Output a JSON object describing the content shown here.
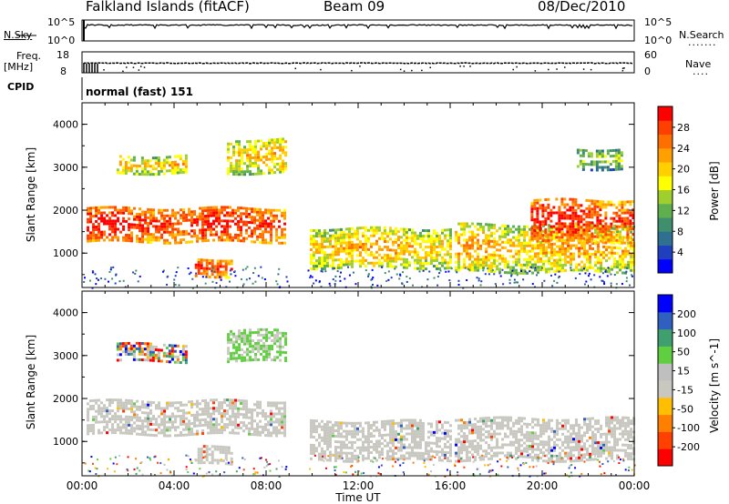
{
  "header": {
    "station": "Falkland Islands (fitACF)",
    "beam": "Beam 09",
    "date": "08/Dec/2010"
  },
  "strip_labels": {
    "nsky_label": "N.Sky",
    "nsky_top": "10^5",
    "nsky_bottom": "10^0",
    "nsearch_label": "N.Search",
    "nsearch_top": "10^5",
    "nsearch_bottom": "10^0",
    "freq_label_1": "Freq.",
    "freq_label_2": "[MHz]",
    "freq_top": "18",
    "freq_bottom": "8",
    "nave_label": "Nave",
    "nave_top": "60",
    "nave_bottom": "0",
    "cpid_label": "CPID",
    "cpid_value": "normal (fast) 151"
  },
  "chart_data": [
    {
      "type": "heatmap",
      "ylabel": "Slant Range [km]",
      "yticks": [
        "4000",
        "3000",
        "2000",
        "1000"
      ],
      "ylim": [
        200,
        4500
      ],
      "xlim": [
        "00:00",
        "24:00"
      ],
      "colorbar": {
        "label": "Power [dB]",
        "ticks": [
          "28",
          "24",
          "20",
          "16",
          "12",
          "8",
          "4"
        ],
        "range": [
          0,
          30
        ],
        "colors": [
          "#0000ff",
          "#1f3fbf",
          "#2f6f8f",
          "#3f8f6f",
          "#5faf4f",
          "#9fcf2f",
          "#ffff00",
          "#ffcf00",
          "#ff9f00",
          "#ff6f00",
          "#ff3f00",
          "#ff0000"
        ]
      },
      "echo_regions": [
        {
          "start": 0.2,
          "end": 8.8,
          "range_low": 1300,
          "range_high": 2100,
          "level": "high"
        },
        {
          "start": 1.5,
          "end": 4.5,
          "range_low": 2900,
          "range_high": 3300,
          "level": "medium"
        },
        {
          "start": 6.3,
          "end": 8.8,
          "range_low": 2900,
          "range_high": 3700,
          "level": "medium"
        },
        {
          "start": 4.9,
          "end": 6.5,
          "range_low": 500,
          "range_high": 900,
          "level": "high"
        },
        {
          "start": 9.9,
          "end": 16.0,
          "range_low": 700,
          "range_high": 1600,
          "level": "medium"
        },
        {
          "start": 16.2,
          "end": 24.0,
          "range_low": 600,
          "range_high": 1700,
          "level": "medium"
        },
        {
          "start": 19.5,
          "end": 24.0,
          "range_low": 1300,
          "range_high": 2300,
          "level": "high"
        },
        {
          "start": 21.5,
          "end": 23.5,
          "range_low": 3000,
          "range_high": 3500,
          "level": "low"
        }
      ]
    },
    {
      "type": "heatmap",
      "ylabel": "Slant Range [km]",
      "yticks": [
        "4000",
        "3000",
        "2000",
        "1000"
      ],
      "ylim": [
        200,
        4500
      ],
      "xlim": [
        "00:00",
        "24:00"
      ],
      "xticks": [
        "00:00",
        "04:00",
        "08:00",
        "12:00",
        "16:00",
        "20:00",
        "00:00"
      ],
      "xlabel": "Time UT",
      "colorbar": {
        "label": "Velocity [m s^-1]",
        "ticks": [
          "200",
          "100",
          "50",
          "15",
          "-15",
          "-50",
          "-100",
          "-200"
        ],
        "range": [
          -250,
          250
        ],
        "colors": [
          "#ff0000",
          "#ff4000",
          "#ff8000",
          "#ffbf00",
          "#c8c8c0",
          "#bfbfbf",
          "#5fcf3f",
          "#3f9f6f",
          "#2f5fbf",
          "#0000ff"
        ]
      },
      "echo_regions": [
        {
          "start": 0.2,
          "end": 8.8,
          "range_low": 1200,
          "range_high": 2000,
          "level": "ground"
        },
        {
          "start": 4.9,
          "end": 6.5,
          "range_low": 500,
          "range_high": 900,
          "level": "ground"
        },
        {
          "start": 9.9,
          "end": 16.0,
          "range_low": 600,
          "range_high": 1500,
          "level": "ground"
        },
        {
          "start": 16.2,
          "end": 24.0,
          "range_low": 600,
          "range_high": 1600,
          "level": "ground"
        },
        {
          "start": 6.3,
          "end": 8.8,
          "range_low": 2900,
          "range_high": 3600,
          "level": "green"
        },
        {
          "start": 1.5,
          "end": 4.5,
          "range_low": 2900,
          "range_high": 3300,
          "level": "mixed"
        }
      ]
    }
  ]
}
